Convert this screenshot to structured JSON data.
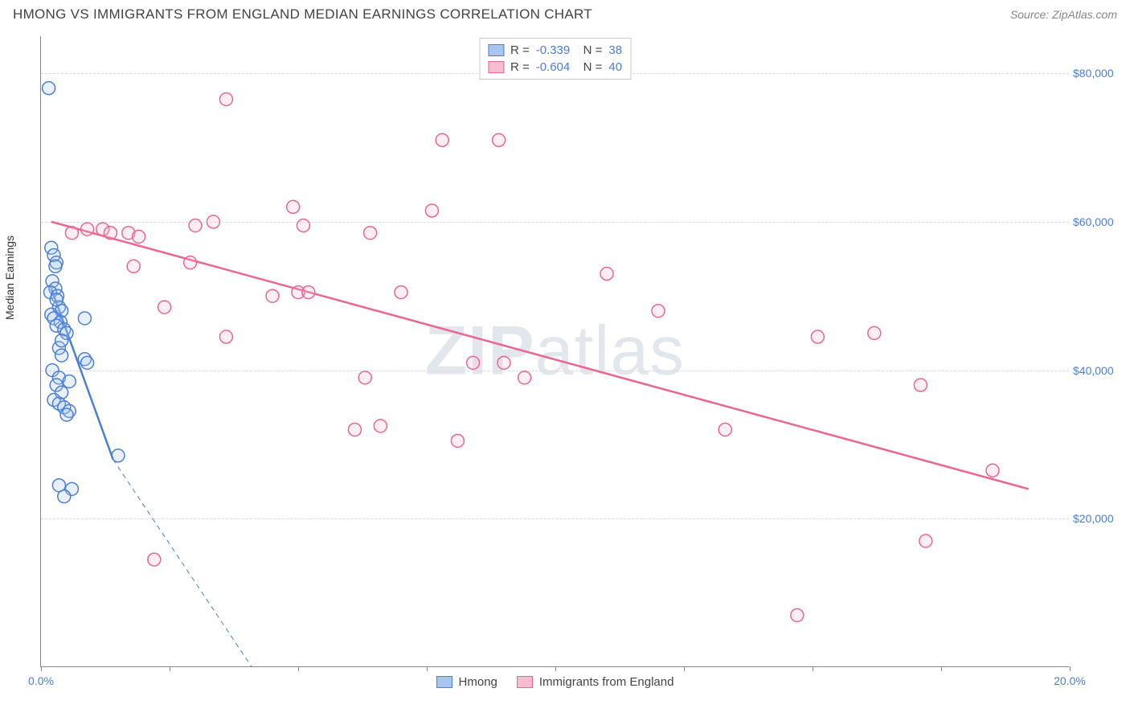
{
  "header": {
    "title": "HMONG VS IMMIGRANTS FROM ENGLAND MEDIAN EARNINGS CORRELATION CHART",
    "source": "Source: ZipAtlas.com"
  },
  "chart": {
    "type": "scatter",
    "y_axis_label": "Median Earnings",
    "background_color": "#ffffff",
    "grid_color": "#dddddd",
    "axis_color": "#888888",
    "xlim": [
      0,
      20
    ],
    "ylim": [
      0,
      85000
    ],
    "x_ticks": [
      0,
      2.5,
      5,
      7.5,
      10,
      12.5,
      15,
      17.5,
      20
    ],
    "x_tick_labels": {
      "0": "0.0%",
      "20": "20.0%"
    },
    "y_ticks": [
      20000,
      40000,
      60000,
      80000
    ],
    "y_tick_labels": [
      "$20,000",
      "$40,000",
      "$60,000",
      "$80,000"
    ],
    "watermark": "ZIPatlas",
    "marker_radius": 8,
    "marker_stroke_width": 1.5,
    "marker_fill_opacity": 0.25,
    "trend_line_width": 2.5,
    "series": [
      {
        "name": "Hmong",
        "color": "#4a7fd8",
        "fill": "#a9c5ef",
        "R": "-0.339",
        "N": "38",
        "trend": {
          "x1": 0.2,
          "y1": 51000,
          "x2": 1.4,
          "y2": 28000
        },
        "trend_ext": {
          "x1": 1.4,
          "y1": 28000,
          "x2": 4.1,
          "y2": 0
        },
        "points": [
          [
            0.15,
            78000
          ],
          [
            0.2,
            56500
          ],
          [
            0.25,
            55500
          ],
          [
            0.3,
            54500
          ],
          [
            0.22,
            52000
          ],
          [
            0.28,
            51000
          ],
          [
            0.18,
            50500
          ],
          [
            0.32,
            50000
          ],
          [
            0.35,
            48500
          ],
          [
            0.4,
            48000
          ],
          [
            0.2,
            47500
          ],
          [
            0.25,
            47000
          ],
          [
            0.38,
            46500
          ],
          [
            0.3,
            46000
          ],
          [
            0.45,
            45500
          ],
          [
            0.5,
            45000
          ],
          [
            0.85,
            47000
          ],
          [
            0.35,
            43000
          ],
          [
            0.4,
            42000
          ],
          [
            0.85,
            41500
          ],
          [
            0.9,
            41000
          ],
          [
            0.22,
            40000
          ],
          [
            0.35,
            39000
          ],
          [
            0.55,
            38500
          ],
          [
            0.3,
            38000
          ],
          [
            0.4,
            37000
          ],
          [
            0.25,
            36000
          ],
          [
            0.35,
            35500
          ],
          [
            0.45,
            35000
          ],
          [
            0.55,
            34500
          ],
          [
            0.5,
            34000
          ],
          [
            1.5,
            28500
          ],
          [
            0.6,
            24000
          ],
          [
            0.35,
            24500
          ],
          [
            0.45,
            23000
          ],
          [
            0.3,
            49500
          ],
          [
            0.4,
            44000
          ],
          [
            0.28,
            54000
          ]
        ]
      },
      {
        "name": "Immigrants from England",
        "color": "#ec6594",
        "fill": "#f7bccf",
        "R": "-0.604",
        "N": "40",
        "trend": {
          "x1": 0.2,
          "y1": 60000,
          "x2": 19.2,
          "y2": 24000
        },
        "points": [
          [
            3.6,
            76500
          ],
          [
            7.8,
            71000
          ],
          [
            8.9,
            71000
          ],
          [
            0.6,
            58500
          ],
          [
            0.9,
            59000
          ],
          [
            1.2,
            59000
          ],
          [
            1.35,
            58500
          ],
          [
            1.7,
            58500
          ],
          [
            4.9,
            62000
          ],
          [
            7.6,
            61500
          ],
          [
            3.0,
            59500
          ],
          [
            3.35,
            60000
          ],
          [
            5.1,
            59500
          ],
          [
            6.4,
            58500
          ],
          [
            1.8,
            54000
          ],
          [
            2.9,
            54500
          ],
          [
            11.0,
            53000
          ],
          [
            2.4,
            48500
          ],
          [
            5.0,
            50500
          ],
          [
            5.2,
            50500
          ],
          [
            7.0,
            50500
          ],
          [
            12.0,
            48000
          ],
          [
            3.6,
            44500
          ],
          [
            15.1,
            44500
          ],
          [
            16.2,
            45000
          ],
          [
            8.4,
            41000
          ],
          [
            9.0,
            41000
          ],
          [
            6.1,
            32000
          ],
          [
            6.6,
            32500
          ],
          [
            9.4,
            39000
          ],
          [
            8.1,
            30500
          ],
          [
            6.3,
            39000
          ],
          [
            17.1,
            38000
          ],
          [
            13.3,
            32000
          ],
          [
            18.5,
            26500
          ],
          [
            17.2,
            17000
          ],
          [
            2.2,
            14500
          ],
          [
            14.7,
            7000
          ],
          [
            1.9,
            58000
          ],
          [
            4.5,
            50000
          ]
        ]
      }
    ]
  },
  "legend_bottom": [
    {
      "label": "Hmong",
      "fill": "#a9c5ef",
      "border": "#4a7fd8"
    },
    {
      "label": "Immigrants from England",
      "fill": "#f7bccf",
      "border": "#ec6594"
    }
  ]
}
